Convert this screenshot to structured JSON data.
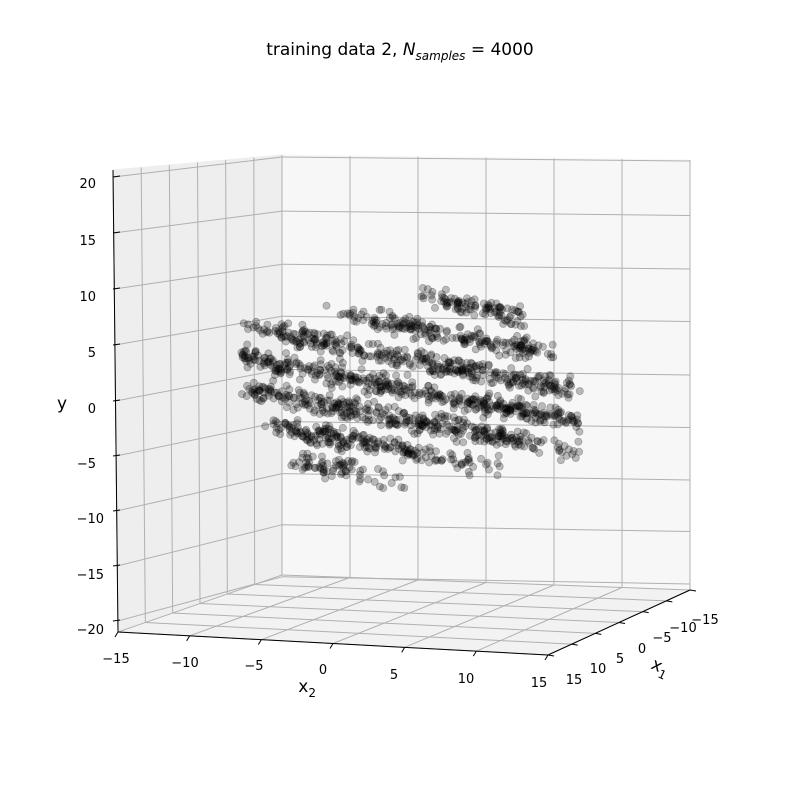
{
  "chart_data": {
    "type": "scatter",
    "title_prefix": "training data 2, ",
    "title_symbol": "N",
    "title_subscript": "samples",
    "title_suffix": " = 4000",
    "title": "training data 2, N_samples = 4000",
    "xlabel": "x",
    "xlabel_sub": "1",
    "zlabel": "x",
    "zlabel_sub": "2",
    "ylabel": "y",
    "point_color": "#000000",
    "point_alpha": 0.25,
    "n_samples": 4000,
    "x1_range": [
      -15,
      15
    ],
    "x2_range": [
      -15,
      15
    ],
    "y_range": [
      -20,
      20
    ],
    "x1_ticks": [
      "−15",
      "−10",
      "−5",
      "0",
      "5",
      "10",
      "15"
    ],
    "x2_ticks": [
      "−15",
      "−10",
      "−5",
      "0",
      "5",
      "10",
      "15"
    ],
    "y_ticks": [
      "20",
      "15",
      "10",
      "5",
      "0",
      "−5",
      "−10",
      "−15",
      "−20"
    ],
    "grid": true,
    "pane_color": "#f2f2f2",
    "grid_color": "#b0b0b0"
  }
}
